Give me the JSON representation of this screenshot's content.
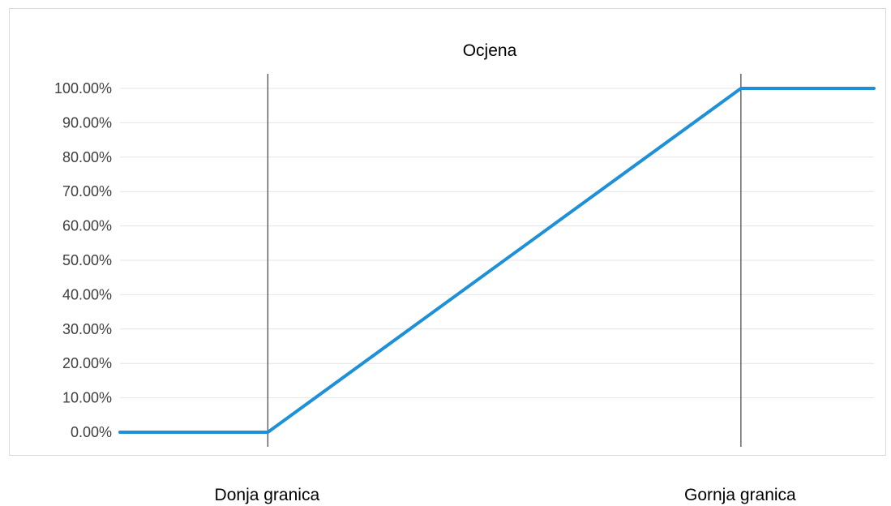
{
  "chart_data": {
    "type": "line",
    "title": "Ocjena",
    "xlabel": "",
    "ylabel": "",
    "ylim": [
      0,
      1
    ],
    "yticks": [
      0,
      0.1,
      0.2,
      0.3,
      0.4,
      0.5,
      0.6,
      0.7,
      0.8,
      0.9,
      1.0
    ],
    "ytick_labels": [
      "0.00%",
      "10.00%",
      "20.00%",
      "30.00%",
      "40.00%",
      "50.00%",
      "60.00%",
      "70.00%",
      "80.00%",
      "90.00%",
      "100.00%"
    ],
    "grid": true,
    "legend": "none",
    "series": [
      {
        "color": "#1e90d8",
        "points": [
          {
            "x": 0,
            "y": 0
          },
          {
            "x": 1,
            "y": 0
          },
          {
            "x": 4.2,
            "y": 1
          },
          {
            "x": 5.1,
            "y": 1
          }
        ]
      }
    ],
    "markers": [
      {
        "x": 1,
        "label": "Donja granica"
      },
      {
        "x": 4.2,
        "label": "Gornja granica"
      }
    ]
  }
}
